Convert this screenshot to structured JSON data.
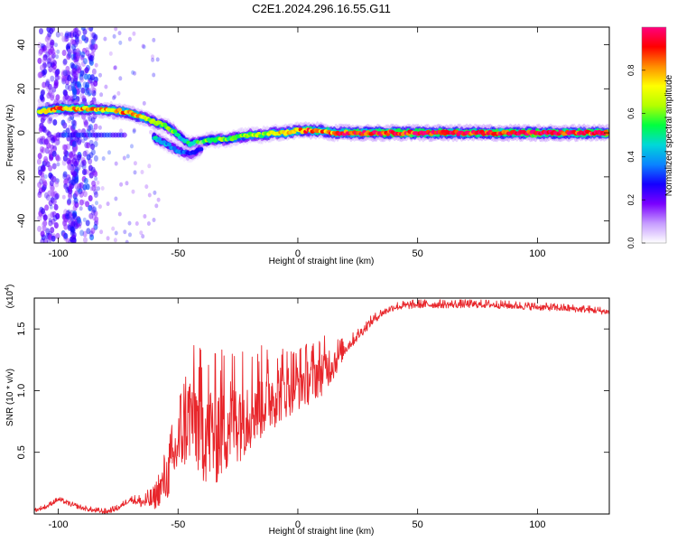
{
  "figure": {
    "title": "C2E1.2024.296.16.55.G11"
  },
  "chart_data": [
    {
      "type": "heatmap",
      "xlabel": "Height of straight line (km)",
      "ylabel": "Frequency (Hz)",
      "xlim": [
        -110,
        130
      ],
      "ylim": [
        -50,
        48
      ],
      "xticks": [
        -100,
        -50,
        0,
        50,
        100
      ],
      "yticks": [
        -40,
        -20,
        0,
        20,
        40
      ],
      "grid": false,
      "colorbar": {
        "label": "Normalized spectral amplitude",
        "range": [
          0,
          1
        ],
        "ticks": [
          "0.0",
          "0.2",
          "0.4",
          "0.6",
          "0.8"
        ],
        "tick_values": [
          0,
          0.2,
          0.4,
          0.6,
          0.8
        ],
        "colors": [
          "#ffffff",
          "#c69cff",
          "#7a00ff",
          "#1400ff",
          "#0a84ff",
          "#00d8d8",
          "#00ff40",
          "#b4ff00",
          "#ffff00",
          "#ff8c00",
          "#ff0000",
          "#ff007f"
        ]
      },
      "ridge": [
        {
          "x": -105,
          "y": 10,
          "a": 0.7
        },
        {
          "x": -100,
          "y": 11,
          "a": 0.85
        },
        {
          "x": -95,
          "y": 11,
          "a": 0.75
        },
        {
          "x": -90,
          "y": 11,
          "a": 0.8
        },
        {
          "x": -75,
          "y": 10,
          "a": 0.75
        },
        {
          "x": -70,
          "y": 9,
          "a": 0.85
        },
        {
          "x": -65,
          "y": 7,
          "a": 0.7
        },
        {
          "x": -60,
          "y": 5,
          "a": 0.6
        },
        {
          "x": -55,
          "y": 3,
          "a": 0.55
        },
        {
          "x": -52,
          "y": 1,
          "a": 0.6
        },
        {
          "x": -48,
          "y": -3,
          "a": 0.45
        },
        {
          "x": -45,
          "y": -5,
          "a": 0.5
        },
        {
          "x": -40,
          "y": -4,
          "a": 0.55
        },
        {
          "x": -35,
          "y": -3,
          "a": 0.6
        },
        {
          "x": -30,
          "y": -3,
          "a": 0.55
        },
        {
          "x": -25,
          "y": -2,
          "a": 0.6
        },
        {
          "x": -20,
          "y": -1,
          "a": 0.65
        },
        {
          "x": -15,
          "y": -1,
          "a": 0.6
        },
        {
          "x": -10,
          "y": 0,
          "a": 0.7
        },
        {
          "x": -5,
          "y": 0,
          "a": 0.75
        },
        {
          "x": 0,
          "y": 1,
          "a": 0.8
        },
        {
          "x": 5,
          "y": 1,
          "a": 0.85
        },
        {
          "x": 10,
          "y": 1,
          "a": 0.8
        },
        {
          "x": 15,
          "y": 0,
          "a": 0.85
        },
        {
          "x": 20,
          "y": 0,
          "a": 0.9
        },
        {
          "x": 30,
          "y": 0,
          "a": 0.92
        },
        {
          "x": 40,
          "y": 0,
          "a": 0.92
        },
        {
          "x": 50,
          "y": 0,
          "a": 0.93
        },
        {
          "x": 60,
          "y": 0,
          "a": 0.93
        },
        {
          "x": 70,
          "y": 0,
          "a": 0.93
        },
        {
          "x": 80,
          "y": 0,
          "a": 0.94
        },
        {
          "x": 90,
          "y": 0,
          "a": 0.94
        },
        {
          "x": 100,
          "y": 0,
          "a": 0.94
        },
        {
          "x": 110,
          "y": 0,
          "a": 0.93
        },
        {
          "x": 120,
          "y": 0,
          "a": 0.93
        },
        {
          "x": 130,
          "y": 0,
          "a": 0.93
        }
      ],
      "secondary_ridge": [
        {
          "x": -60,
          "y": -2,
          "a": 0.45
        },
        {
          "x": -55,
          "y": -5,
          "a": 0.4
        },
        {
          "x": -50,
          "y": -8,
          "a": 0.35
        },
        {
          "x": -45,
          "y": -10,
          "a": 0.3
        },
        {
          "x": -40,
          "y": -7,
          "a": 0.3
        }
      ]
    },
    {
      "type": "line",
      "xlabel": "Height of straight line (km)",
      "ylabel": "SNR (10 * v/v)",
      "scale_note": "(x10",
      "scale_exponent": "4",
      "xlim": [
        -110,
        130
      ],
      "ylim": [
        0,
        1.75
      ],
      "xticks": [
        -100,
        -50,
        0,
        50,
        100
      ],
      "yticks": [
        0.5,
        1.0,
        1.5
      ],
      "ytick_labels": [
        "0.5",
        "1.0",
        "1.5"
      ],
      "color": "#e8262b",
      "grid": false,
      "series": [
        {
          "points": [
            [
              -110,
              0.03
            ],
            [
              -105,
              0.06
            ],
            [
              -100,
              0.12
            ],
            [
              -95,
              0.08
            ],
            [
              -90,
              0.05
            ],
            [
              -85,
              0.03
            ],
            [
              -80,
              0.02
            ],
            [
              -75,
              0.05
            ],
            [
              -70,
              0.12
            ],
            [
              -65,
              0.1
            ],
            [
              -60,
              0.12
            ],
            [
              -58,
              0.2
            ],
            [
              -55,
              0.3
            ],
            [
              -52,
              0.45
            ],
            [
              -50,
              0.6
            ],
            [
              -47,
              0.75
            ],
            [
              -45,
              0.85
            ],
            [
              -40,
              0.75
            ],
            [
              -35,
              0.7
            ],
            [
              -30,
              0.8
            ],
            [
              -25,
              0.85
            ],
            [
              -20,
              0.9
            ],
            [
              -15,
              0.95
            ],
            [
              -10,
              1.0
            ],
            [
              -5,
              1.05
            ],
            [
              0,
              1.08
            ],
            [
              5,
              1.12
            ],
            [
              10,
              1.18
            ],
            [
              15,
              1.25
            ],
            [
              20,
              1.35
            ],
            [
              25,
              1.45
            ],
            [
              30,
              1.55
            ],
            [
              35,
              1.63
            ],
            [
              40,
              1.68
            ],
            [
              50,
              1.7
            ],
            [
              60,
              1.7
            ],
            [
              70,
              1.7
            ],
            [
              80,
              1.7
            ],
            [
              90,
              1.69
            ],
            [
              100,
              1.68
            ],
            [
              110,
              1.67
            ],
            [
              120,
              1.66
            ],
            [
              125,
              1.65
            ],
            [
              130,
              1.64
            ]
          ],
          "noise": [
            [
              -110,
              0.015
            ],
            [
              -70,
              0.02
            ],
            [
              -60,
              0.08
            ],
            [
              -52,
              0.25
            ],
            [
              -45,
              0.4
            ],
            [
              -40,
              0.45
            ],
            [
              -30,
              0.45
            ],
            [
              -20,
              0.35
            ],
            [
              -10,
              0.28
            ],
            [
              0,
              0.22
            ],
            [
              10,
              0.2
            ],
            [
              15,
              0.15
            ],
            [
              20,
              0.05
            ],
            [
              35,
              0.03
            ],
            [
              130,
              0.025
            ]
          ]
        }
      ]
    }
  ]
}
